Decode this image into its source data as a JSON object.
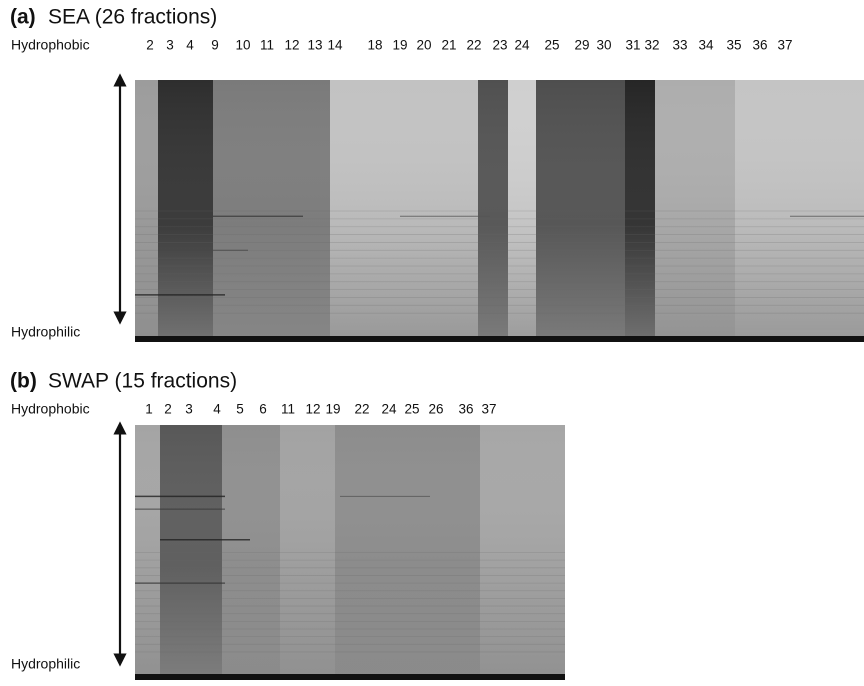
{
  "panels": [
    {
      "tag": "(a)",
      "title": "SEA (26 fractions)",
      "top_label": "Hydrophobic",
      "bottom_label": "Hydrophilic",
      "lanes": [
        "2",
        "3",
        "4",
        "9",
        "10",
        "11",
        "12",
        "13",
        "14",
        "18",
        "19",
        "20",
        "21",
        "22",
        "23",
        "24",
        "25",
        "29",
        "30",
        "31",
        "32",
        "33",
        "34",
        "35",
        "36",
        "37"
      ]
    },
    {
      "tag": "(b)",
      "title": "SWAP (15 fractions)",
      "top_label": "Hydrophobic",
      "bottom_label": "Hydrophilic",
      "lanes": [
        "1",
        "2",
        "3",
        "4",
        "5",
        "6",
        "11",
        "12",
        "19",
        "22",
        "24",
        "25",
        "26",
        "36",
        "37"
      ]
    }
  ]
}
